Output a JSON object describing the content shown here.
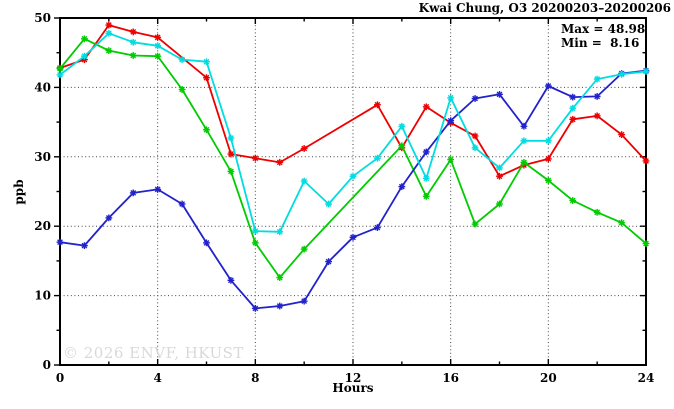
{
  "header": {
    "title": "Kwai Chung, O3 20200203–20200206"
  },
  "stats": {
    "max_label": "Max = 48.98",
    "min_label": "Min =  8.16"
  },
  "watermark": "© 2026 ENVF, HKUST",
  "chart_data": {
    "type": "line",
    "title": "Kwai Chung, O3 20200203-20200206",
    "station": "Kwai Chung",
    "pollutant": "O3",
    "unit": "ppb",
    "xlabel": "Hours",
    "ylabel": "ppb",
    "xlim": [
      0,
      24
    ],
    "ylim": [
      0,
      50
    ],
    "x_major_ticks": [
      0,
      4,
      8,
      12,
      16,
      20,
      24
    ],
    "x_minor_step": 2,
    "y_major_ticks": [
      0,
      10,
      20,
      30,
      40,
      50
    ],
    "y_minor_step": 5,
    "grid_x": [
      4,
      8,
      12,
      16,
      20
    ],
    "grid_y": [
      10,
      20,
      30,
      40
    ],
    "legend_position": "none",
    "max": 48.98,
    "min": 8.16,
    "x": [
      0,
      1,
      2,
      3,
      4,
      5,
      6,
      7,
      8,
      9,
      10,
      11,
      12,
      13,
      14,
      15,
      16,
      17,
      18,
      19,
      20,
      21,
      22,
      23,
      24
    ],
    "series": [
      {
        "name": "series-red",
        "color": "#ee0000",
        "values": [
          42.8,
          44.0,
          48.98,
          48.0,
          47.2,
          null,
          41.4,
          30.4,
          29.8,
          29.2,
          31.2,
          null,
          null,
          37.5,
          31.3,
          37.2,
          34.9,
          33.0,
          27.2,
          28.8,
          29.7,
          35.4,
          35.9,
          33.2,
          29.4
        ]
      },
      {
        "name": "series-green",
        "color": "#00cc00",
        "values": [
          42.7,
          47.0,
          45.3,
          44.6,
          44.5,
          39.7,
          33.9,
          27.9,
          17.6,
          12.6,
          16.7,
          null,
          null,
          null,
          31.6,
          24.3,
          29.6,
          20.3,
          23.2,
          29.2,
          26.6,
          23.7,
          22.0,
          20.5,
          17.5
        ]
      },
      {
        "name": "series-blue",
        "color": "#2222cc",
        "values": [
          17.7,
          17.2,
          21.2,
          24.8,
          25.3,
          23.2,
          17.6,
          12.2,
          8.16,
          8.5,
          9.2,
          14.9,
          18.4,
          19.8,
          25.7,
          30.7,
          35.2,
          38.4,
          39.0,
          34.4,
          40.2,
          38.6,
          38.7,
          42.0,
          42.4
        ]
      },
      {
        "name": "series-cyan",
        "color": "#00dde0",
        "values": [
          41.8,
          44.5,
          47.8,
          46.5,
          46.0,
          44.0,
          43.7,
          32.7,
          19.3,
          19.2,
          26.5,
          23.2,
          27.2,
          29.8,
          34.4,
          26.9,
          38.5,
          31.3,
          28.4,
          32.3,
          32.3,
          37.0,
          41.2,
          41.9,
          42.3
        ]
      }
    ]
  }
}
